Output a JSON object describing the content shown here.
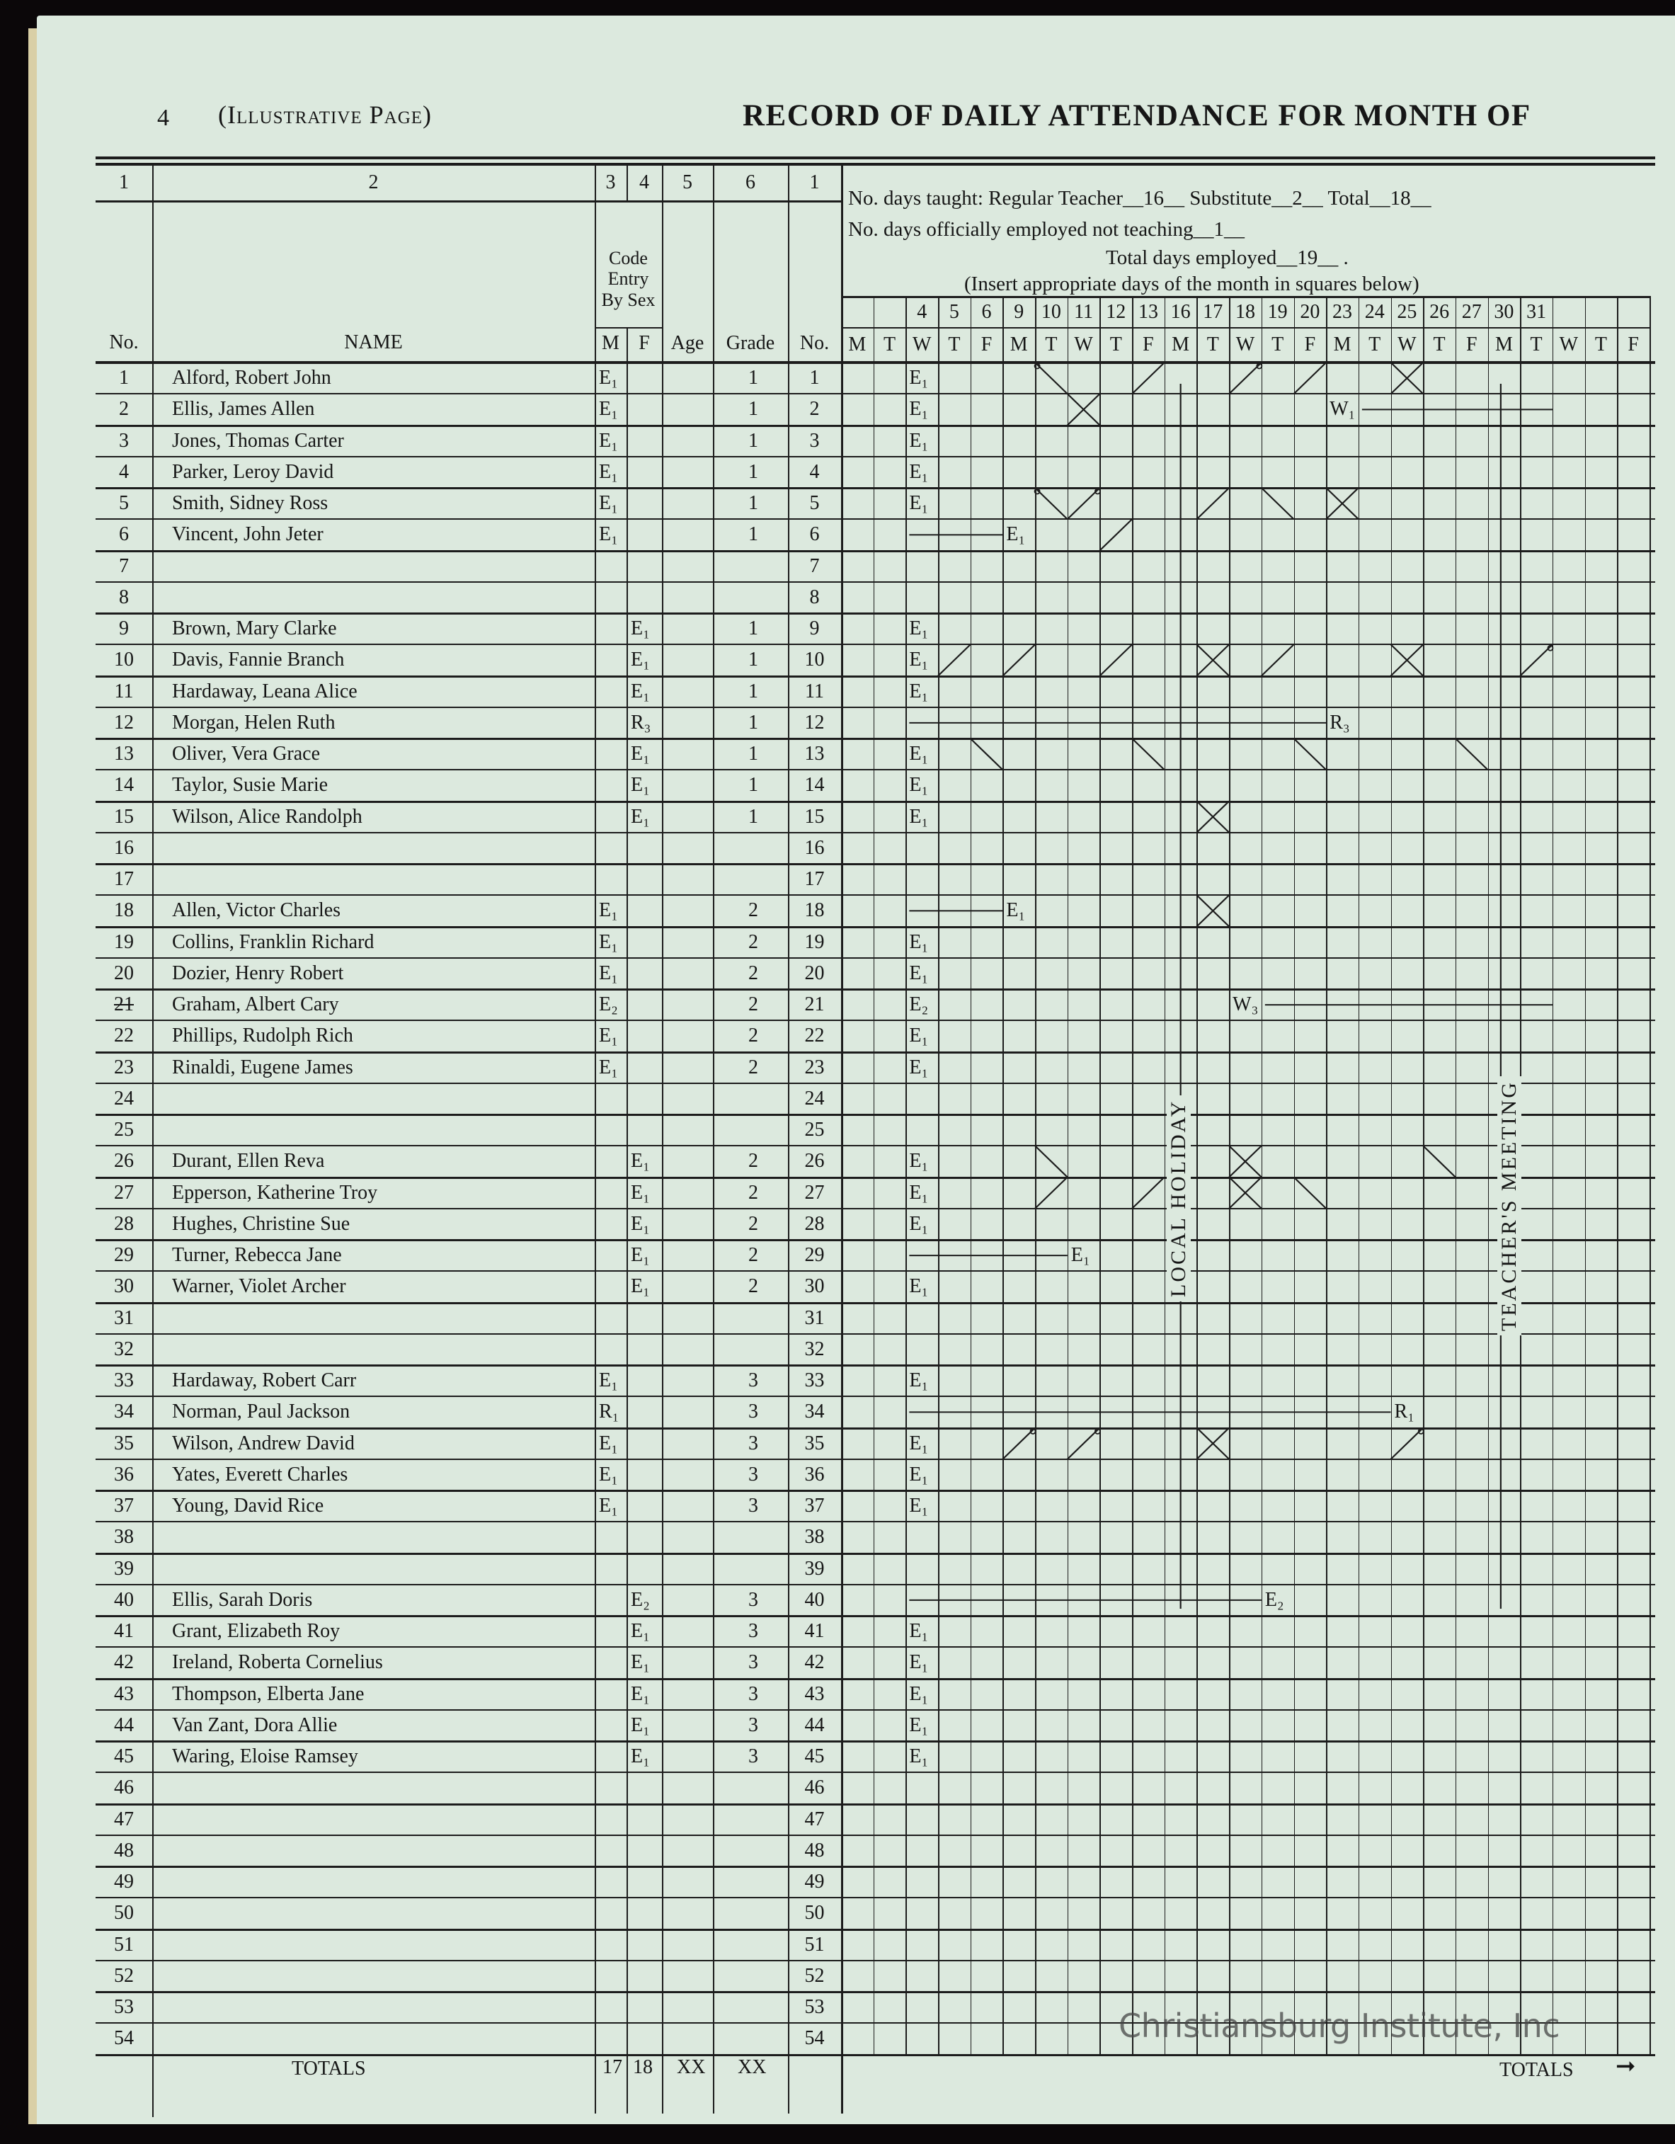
{
  "header": {
    "page_number": "4",
    "page_label": "(Illustrative Page)",
    "title": "RECORD OF DAILY ATTENDANCE FOR MONTH OF"
  },
  "columns": {
    "numbers": [
      "1",
      "2",
      "3",
      "4",
      "5",
      "6",
      "1"
    ],
    "no_label": "No.",
    "name_label": "NAME",
    "code_label": "Code Entry By Sex",
    "m_label": "M",
    "f_label": "F",
    "age_label": "Age",
    "grade_label": "Grade",
    "no_label_right": "No."
  },
  "info": {
    "line1": "No. days taught:   Regular Teacher__16__  Substitute__2__  Total__18__",
    "line2": "No. days officially employed not teaching__1__",
    "line3": "Total days employed__19__ .",
    "line4": "(Insert appropriate days of the month in squares below)"
  },
  "days": [
    "",
    "",
    "4",
    "5",
    "6",
    "9",
    "10",
    "11",
    "12",
    "13",
    "16",
    "17",
    "18",
    "19",
    "20",
    "23",
    "24",
    "25",
    "26",
    "27",
    "30",
    "31",
    "",
    "",
    ""
  ],
  "weekdays": [
    "M",
    "T",
    "W",
    "T",
    "F",
    "M",
    "T",
    "W",
    "T",
    "F",
    "M",
    "T",
    "W",
    "T",
    "F",
    "M",
    "T",
    "W",
    "T",
    "F",
    "M",
    "T",
    "W",
    "T",
    "F"
  ],
  "annotations": {
    "local_holiday": {
      "day": "16",
      "label": "LOCAL HOLIDAY"
    },
    "teachers_meeting": {
      "day": "30",
      "label": "TEACHER'S MEETING"
    }
  },
  "rows": [
    {
      "no": "1",
      "name": "Alford, Robert John",
      "m": "E₁",
      "f": "",
      "grade": "1",
      "marks": [
        {
          "day": "4",
          "text": "E₁"
        },
        {
          "day": "10",
          "mark": "\\o"
        },
        {
          "day": "13",
          "mark": "/"
        },
        {
          "day": "18",
          "mark": "/o"
        },
        {
          "day": "20",
          "mark": "/"
        },
        {
          "day": "25",
          "mark": "X"
        }
      ]
    },
    {
      "no": "2",
      "name": "Ellis, James Allen",
      "m": "E₁",
      "f": "",
      "grade": "1",
      "marks": [
        {
          "day": "4",
          "text": "E₁"
        },
        {
          "day": "11",
          "mark": "X"
        },
        {
          "day": "23",
          "text": "W₁",
          "line_to": "31"
        }
      ]
    },
    {
      "no": "3",
      "name": "Jones, Thomas Carter",
      "m": "E₁",
      "f": "",
      "grade": "1",
      "marks": [
        {
          "day": "4",
          "text": "E₁"
        }
      ]
    },
    {
      "no": "4",
      "name": "Parker, Leroy David",
      "m": "E₁",
      "f": "",
      "grade": "1",
      "marks": [
        {
          "day": "4",
          "text": "E₁"
        }
      ]
    },
    {
      "no": "5",
      "name": "Smith, Sidney Ross",
      "m": "E₁",
      "f": "",
      "grade": "1",
      "marks": [
        {
          "day": "4",
          "text": "E₁"
        },
        {
          "day": "10",
          "mark": "\\o"
        },
        {
          "day": "11",
          "mark": "/o"
        },
        {
          "day": "17",
          "mark": "/"
        },
        {
          "day": "19",
          "mark": "\\"
        },
        {
          "day": "23",
          "mark": "X"
        }
      ]
    },
    {
      "no": "6",
      "name": "Vincent, John Jeter",
      "m": "E₁",
      "f": "",
      "grade": "1",
      "marks": [
        {
          "day": "9",
          "text": "E₁",
          "line_from": "4"
        },
        {
          "day": "12",
          "mark": "/"
        }
      ]
    },
    {
      "no": "7",
      "name": "",
      "m": "",
      "f": "",
      "grade": "",
      "marks": []
    },
    {
      "no": "8",
      "name": "",
      "m": "",
      "f": "",
      "grade": "",
      "marks": []
    },
    {
      "no": "9",
      "name": "Brown, Mary Clarke",
      "m": "",
      "f": "E₁",
      "grade": "1",
      "marks": [
        {
          "day": "4",
          "text": "E₁"
        }
      ]
    },
    {
      "no": "10",
      "name": "Davis, Fannie Branch",
      "m": "",
      "f": "E₁",
      "grade": "1",
      "marks": [
        {
          "day": "4",
          "text": "E₁"
        },
        {
          "day": "5",
          "mark": "/"
        },
        {
          "day": "9",
          "mark": "/"
        },
        {
          "day": "12",
          "mark": "/"
        },
        {
          "day": "17",
          "mark": "X"
        },
        {
          "day": "19",
          "mark": "/"
        },
        {
          "day": "25",
          "mark": "X"
        },
        {
          "day": "31",
          "mark": "/o"
        }
      ]
    },
    {
      "no": "11",
      "name": "Hardaway, Leana Alice",
      "m": "",
      "f": "E₁",
      "grade": "1",
      "marks": [
        {
          "day": "4",
          "text": "E₁"
        }
      ]
    },
    {
      "no": "12",
      "name": "Morgan, Helen Ruth",
      "m": "",
      "f": "R₃",
      "grade": "1",
      "marks": [
        {
          "day": "23",
          "text": "R₃",
          "line_from": "4"
        }
      ]
    },
    {
      "no": "13",
      "name": "Oliver, Vera Grace",
      "m": "",
      "f": "E₁",
      "grade": "1",
      "marks": [
        {
          "day": "4",
          "text": "E₁"
        },
        {
          "day": "6",
          "mark": "\\"
        },
        {
          "day": "13",
          "mark": "\\"
        },
        {
          "day": "20",
          "mark": "\\"
        },
        {
          "day": "27",
          "mark": "\\"
        }
      ]
    },
    {
      "no": "14",
      "name": "Taylor, Susie Marie",
      "m": "",
      "f": "E₁",
      "grade": "1",
      "marks": [
        {
          "day": "4",
          "text": "E₁"
        }
      ]
    },
    {
      "no": "15",
      "name": "Wilson, Alice Randolph",
      "m": "",
      "f": "E₁",
      "grade": "1",
      "marks": [
        {
          "day": "4",
          "text": "E₁"
        },
        {
          "day": "17",
          "mark": "X"
        }
      ]
    },
    {
      "no": "16",
      "name": "",
      "m": "",
      "f": "",
      "grade": "",
      "marks": []
    },
    {
      "no": "17",
      "name": "",
      "m": "",
      "f": "",
      "grade": "",
      "marks": []
    },
    {
      "no": "18",
      "name": "Allen, Victor Charles",
      "m": "E₁",
      "f": "",
      "grade": "2",
      "marks": [
        {
          "day": "9",
          "text": "E₁",
          "line_from": "4"
        },
        {
          "day": "17",
          "mark": "X"
        }
      ]
    },
    {
      "no": "19",
      "name": "Collins, Franklin Richard",
      "m": "E₁",
      "f": "",
      "grade": "2",
      "marks": [
        {
          "day": "4",
          "text": "E₁"
        }
      ]
    },
    {
      "no": "20",
      "name": "Dozier, Henry Robert",
      "m": "E₁",
      "f": "",
      "grade": "2",
      "marks": [
        {
          "day": "4",
          "text": "E₁"
        }
      ]
    },
    {
      "no": "21",
      "struck": true,
      "name": "Graham, Albert Cary",
      "m": "E₂",
      "f": "",
      "grade": "2",
      "marks": [
        {
          "day": "4",
          "text": "E₂"
        },
        {
          "day": "18",
          "text": "W₃",
          "line_to": "31"
        }
      ]
    },
    {
      "no": "22",
      "name": "Phillips, Rudolph Rich",
      "m": "E₁",
      "f": "",
      "grade": "2",
      "marks": [
        {
          "day": "4",
          "text": "E₁"
        }
      ]
    },
    {
      "no": "23",
      "name": "Rinaldi, Eugene James",
      "m": "E₁",
      "f": "",
      "grade": "2",
      "marks": [
        {
          "day": "4",
          "text": "E₁"
        }
      ]
    },
    {
      "no": "24",
      "name": "",
      "m": "",
      "f": "",
      "grade": "",
      "marks": []
    },
    {
      "no": "25",
      "name": "",
      "m": "",
      "f": "",
      "grade": "",
      "marks": []
    },
    {
      "no": "26",
      "name": "Durant, Ellen Reva",
      "m": "",
      "f": "E₁",
      "grade": "2",
      "marks": [
        {
          "day": "4",
          "text": "E₁"
        },
        {
          "day": "10",
          "mark": "\\"
        },
        {
          "day": "18",
          "mark": "X"
        },
        {
          "day": "26",
          "mark": "\\"
        }
      ]
    },
    {
      "no": "27",
      "name": "Epperson, Katherine Troy",
      "m": "",
      "f": "E₁",
      "grade": "2",
      "marks": [
        {
          "day": "4",
          "text": "E₁"
        },
        {
          "day": "10",
          "mark": "/"
        },
        {
          "day": "13",
          "mark": "/"
        },
        {
          "day": "18",
          "mark": "X"
        },
        {
          "day": "20",
          "mark": "\\"
        }
      ]
    },
    {
      "no": "28",
      "name": "Hughes, Christine Sue",
      "m": "",
      "f": "E₁",
      "grade": "2",
      "marks": [
        {
          "day": "4",
          "text": "E₁"
        }
      ]
    },
    {
      "no": "29",
      "name": "Turner, Rebecca Jane",
      "m": "",
      "f": "E₁",
      "grade": "2",
      "marks": [
        {
          "day": "11",
          "text": "E₁",
          "line_from": "4"
        }
      ]
    },
    {
      "no": "30",
      "name": "Warner, Violet Archer",
      "m": "",
      "f": "E₁",
      "grade": "2",
      "marks": [
        {
          "day": "4",
          "text": "E₁"
        }
      ]
    },
    {
      "no": "31",
      "name": "",
      "m": "",
      "f": "",
      "grade": "",
      "marks": []
    },
    {
      "no": "32",
      "name": "",
      "m": "",
      "f": "",
      "grade": "",
      "marks": []
    },
    {
      "no": "33",
      "name": "Hardaway, Robert Carr",
      "m": "E₁",
      "f": "",
      "grade": "3",
      "marks": [
        {
          "day": "4",
          "text": "E₁"
        }
      ]
    },
    {
      "no": "34",
      "name": "Norman, Paul Jackson",
      "m": "R₁",
      "f": "",
      "grade": "3",
      "marks": [
        {
          "day": "25",
          "text": "R₁",
          "line_from": "4"
        }
      ]
    },
    {
      "no": "35",
      "name": "Wilson, Andrew David",
      "m": "E₁",
      "f": "",
      "grade": "3",
      "marks": [
        {
          "day": "4",
          "text": "E₁"
        },
        {
          "day": "9",
          "mark": "/o"
        },
        {
          "day": "11",
          "mark": "/o"
        },
        {
          "day": "17",
          "mark": "X"
        },
        {
          "day": "25",
          "mark": "/o"
        }
      ]
    },
    {
      "no": "36",
      "name": "Yates, Everett Charles",
      "m": "E₁",
      "f": "",
      "grade": "3",
      "marks": [
        {
          "day": "4",
          "text": "E₁"
        }
      ]
    },
    {
      "no": "37",
      "name": "Young, David Rice",
      "m": "E₁",
      "f": "",
      "grade": "3",
      "marks": [
        {
          "day": "4",
          "text": "E₁"
        }
      ]
    },
    {
      "no": "38",
      "name": "",
      "m": "",
      "f": "",
      "grade": "",
      "marks": []
    },
    {
      "no": "39",
      "name": "",
      "m": "",
      "f": "",
      "grade": "",
      "marks": []
    },
    {
      "no": "40",
      "name": "Ellis, Sarah Doris",
      "m": "",
      "f": "E₂",
      "grade": "3",
      "marks": [
        {
          "day": "19",
          "text": "E₂",
          "line_from": "4"
        }
      ]
    },
    {
      "no": "41",
      "name": "Grant, Elizabeth Roy",
      "m": "",
      "f": "E₁",
      "grade": "3",
      "marks": [
        {
          "day": "4",
          "text": "E₁"
        }
      ]
    },
    {
      "no": "42",
      "name": "Ireland, Roberta Cornelius",
      "m": "",
      "f": "E₁",
      "grade": "3",
      "marks": [
        {
          "day": "4",
          "text": "E₁"
        }
      ]
    },
    {
      "no": "43",
      "name": "Thompson, Elberta Jane",
      "m": "",
      "f": "E₁",
      "grade": "3",
      "marks": [
        {
          "day": "4",
          "text": "E₁"
        }
      ]
    },
    {
      "no": "44",
      "name": "Van Zant, Dora Allie",
      "m": "",
      "f": "E₁",
      "grade": "3",
      "marks": [
        {
          "day": "4",
          "text": "E₁"
        }
      ]
    },
    {
      "no": "45",
      "name": "Waring, Eloise Ramsey",
      "m": "",
      "f": "E₁",
      "grade": "3",
      "marks": [
        {
          "day": "4",
          "text": "E₁"
        }
      ]
    },
    {
      "no": "46",
      "name": "",
      "m": "",
      "f": "",
      "grade": "",
      "marks": []
    },
    {
      "no": "47",
      "name": "",
      "m": "",
      "f": "",
      "grade": "",
      "marks": []
    },
    {
      "no": "48",
      "name": "",
      "m": "",
      "f": "",
      "grade": "",
      "marks": []
    },
    {
      "no": "49",
      "name": "",
      "m": "",
      "f": "",
      "grade": "",
      "marks": []
    },
    {
      "no": "50",
      "name": "",
      "m": "",
      "f": "",
      "grade": "",
      "marks": []
    },
    {
      "no": "51",
      "name": "",
      "m": "",
      "f": "",
      "grade": "",
      "marks": []
    },
    {
      "no": "52",
      "name": "",
      "m": "",
      "f": "",
      "grade": "",
      "marks": []
    },
    {
      "no": "53",
      "name": "",
      "m": "",
      "f": "",
      "grade": "",
      "marks": []
    },
    {
      "no": "54",
      "name": "",
      "m": "",
      "f": "",
      "grade": "",
      "marks": []
    }
  ],
  "totals": {
    "label": "TOTALS",
    "m": "17",
    "f": "18",
    "age": "XX",
    "grade": "XX",
    "right_label": "TOTALS",
    "arrow_icon": "arrow-right"
  },
  "watermark": "Christiansburg Institute, Inc"
}
